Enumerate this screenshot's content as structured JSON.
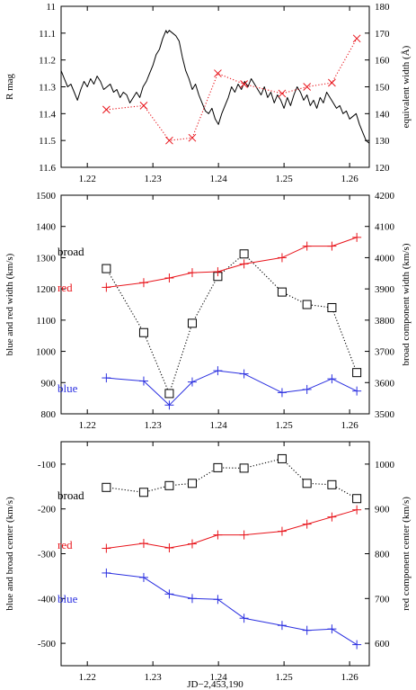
{
  "chart_data": [
    {
      "type": "line",
      "xlim": [
        1.216,
        1.263
      ],
      "xticks": [
        1.22,
        1.23,
        1.24,
        1.25,
        1.26
      ],
      "xtick_labels": [
        "1.22",
        "1.23",
        "1.24",
        "1.25",
        "1.26"
      ],
      "ylabel": "R mag",
      "ylim": [
        11.0,
        11.6
      ],
      "y_inverted": true,
      "yticks": [
        11.0,
        11.1,
        11.2,
        11.3,
        11.4,
        11.5,
        11.6
      ],
      "ytick_labels": [
        "11",
        "11.1",
        "11.2",
        "11.3",
        "11.4",
        "11.5",
        "11.6"
      ],
      "y2label": "equivalent width (Å)",
      "y2lim": [
        120,
        180
      ],
      "y2ticks": [
        120,
        130,
        140,
        150,
        160,
        170,
        180
      ],
      "y2tick_labels": [
        "120",
        "130",
        "140",
        "150",
        "160",
        "170",
        "180"
      ],
      "series": [
        {
          "axis": "left",
          "style": "solid",
          "color": "#000000",
          "x": [
            1.216,
            1.2165,
            1.217,
            1.2175,
            1.218,
            1.2185,
            1.219,
            1.2195,
            1.22,
            1.2205,
            1.221,
            1.2215,
            1.222,
            1.2225,
            1.223,
            1.2235,
            1.224,
            1.2245,
            1.225,
            1.2255,
            1.226,
            1.2265,
            1.227,
            1.2275,
            1.228,
            1.2285,
            1.229,
            1.2295,
            1.23,
            1.2305,
            1.231,
            1.2315,
            1.232,
            1.2322,
            1.2325,
            1.233,
            1.2335,
            1.234,
            1.2345,
            1.235,
            1.2355,
            1.236,
            1.2365,
            1.237,
            1.2375,
            1.238,
            1.2385,
            1.239,
            1.2395,
            1.24,
            1.2405,
            1.241,
            1.2415,
            1.242,
            1.2425,
            1.243,
            1.2435,
            1.244,
            1.2445,
            1.245,
            1.2455,
            1.246,
            1.2465,
            1.247,
            1.2475,
            1.248,
            1.2485,
            1.249,
            1.2495,
            1.25,
            1.2505,
            1.251,
            1.2515,
            1.252,
            1.2525,
            1.253,
            1.2535,
            1.254,
            1.2545,
            1.255,
            1.2555,
            1.256,
            1.2565,
            1.257,
            1.2575,
            1.258,
            1.2585,
            1.259,
            1.2595,
            1.26,
            1.2605,
            1.261,
            1.2615,
            1.262,
            1.2625,
            1.263
          ],
          "y": [
            11.24,
            11.27,
            11.3,
            11.29,
            11.32,
            11.35,
            11.31,
            11.28,
            11.3,
            11.27,
            11.29,
            11.26,
            11.28,
            11.31,
            11.3,
            11.29,
            11.32,
            11.31,
            11.34,
            11.32,
            11.33,
            11.36,
            11.34,
            11.32,
            11.34,
            11.3,
            11.28,
            11.25,
            11.22,
            11.18,
            11.16,
            11.12,
            11.09,
            11.1,
            11.09,
            11.1,
            11.11,
            11.13,
            11.19,
            11.24,
            11.27,
            11.31,
            11.29,
            11.33,
            11.36,
            11.39,
            11.4,
            11.38,
            11.42,
            11.44,
            11.4,
            11.37,
            11.34,
            11.3,
            11.32,
            11.29,
            11.31,
            11.28,
            11.3,
            11.27,
            11.29,
            11.31,
            11.33,
            11.3,
            11.34,
            11.32,
            11.36,
            11.33,
            11.35,
            11.38,
            11.34,
            11.37,
            11.33,
            11.3,
            11.32,
            11.35,
            11.33,
            11.37,
            11.35,
            11.38,
            11.34,
            11.36,
            11.32,
            11.34,
            11.36,
            11.38,
            11.37,
            11.4,
            11.39,
            11.42,
            11.41,
            11.4,
            11.44,
            11.47,
            11.5,
            11.51
          ]
        },
        {
          "axis": "right",
          "style": "dotted",
          "marker": "x",
          "color": "#e8141b",
          "x": [
            1.2229,
            1.2286,
            1.2325,
            1.236,
            1.2399,
            1.2439,
            1.2497,
            1.2535,
            1.2573,
            1.2611
          ],
          "y": [
            141.5,
            143,
            130,
            131,
            155,
            151,
            147.5,
            150,
            151.5,
            168
          ]
        }
      ]
    },
    {
      "type": "line",
      "xlim": [
        1.216,
        1.263
      ],
      "xticks": [
        1.22,
        1.23,
        1.24,
        1.25,
        1.26
      ],
      "xtick_labels": [
        "1.22",
        "1.23",
        "1.24",
        "1.25",
        "1.26"
      ],
      "ylabel": "blue and red width (km/s)",
      "ylim": [
        800,
        1500
      ],
      "yticks": [
        800,
        900,
        1000,
        1100,
        1200,
        1300,
        1400,
        1500
      ],
      "ytick_labels": [
        "800",
        "900",
        "1000",
        "1100",
        "1200",
        "1300",
        "1400",
        "1500"
      ],
      "y2label": "broad component width (km/s)",
      "y2lim": [
        3500,
        4200
      ],
      "y2ticks": [
        3500,
        3600,
        3700,
        3800,
        3900,
        4000,
        4100,
        4200
      ],
      "y2tick_labels": [
        "3500",
        "3600",
        "3700",
        "3800",
        "3900",
        "4000",
        "4100",
        "4200"
      ],
      "series": [
        {
          "name": "broad",
          "axis": "right",
          "style": "dotted",
          "marker": "square",
          "color": "#000000",
          "x": [
            1.2229,
            1.2286,
            1.2325,
            1.236,
            1.2399,
            1.2439,
            1.2497,
            1.2535,
            1.2573,
            1.2611
          ],
          "y": [
            3965,
            3760,
            3565,
            3790,
            3940,
            4012,
            3890,
            3850,
            3840,
            3632
          ]
        },
        {
          "name": "red",
          "axis": "left",
          "style": "solid",
          "marker": "plus",
          "color": "#e8141b",
          "x": [
            1.2229,
            1.2286,
            1.2325,
            1.236,
            1.2399,
            1.2439,
            1.2497,
            1.2535,
            1.2573,
            1.2611
          ],
          "y": [
            1205,
            1220,
            1235,
            1252,
            1255,
            1280,
            1300,
            1337,
            1337,
            1365
          ]
        },
        {
          "name": "blue",
          "axis": "left",
          "style": "solid",
          "marker": "plus",
          "color": "#2a2fe0",
          "x": [
            1.2229,
            1.2286,
            1.2325,
            1.236,
            1.2399,
            1.2439,
            1.2497,
            1.2535,
            1.2573,
            1.2611
          ],
          "y": [
            915,
            905,
            828,
            902,
            938,
            928,
            868,
            878,
            912,
            873
          ]
        }
      ],
      "labels": {
        "broad": "broad",
        "red": "red",
        "blue": "blue"
      }
    },
    {
      "type": "line",
      "xlim": [
        1.216,
        1.263
      ],
      "xticks": [
        1.22,
        1.23,
        1.24,
        1.25,
        1.26
      ],
      "xtick_labels": [
        "1.22",
        "1.23",
        "1.24",
        "1.25",
        "1.26"
      ],
      "xlabel": "JD−2,453,190",
      "ylabel": "blue and broad center (km/s)",
      "ylim": [
        -550,
        -50
      ],
      "yticks": [
        -500,
        -400,
        -300,
        -200,
        -100
      ],
      "ytick_labels": [
        "-500",
        "-400",
        "-300",
        "-200",
        "-100"
      ],
      "y2label": "red component center (km/s)",
      "y2lim": [
        550,
        1050
      ],
      "y2ticks": [
        600,
        700,
        800,
        900,
        1000
      ],
      "y2tick_labels": [
        "600",
        "700",
        "800",
        "900",
        "1000"
      ],
      "series": [
        {
          "name": "broad",
          "axis": "left",
          "style": "dotted",
          "marker": "square",
          "color": "#000000",
          "x": [
            1.2229,
            1.2286,
            1.2325,
            1.236,
            1.2399,
            1.2439,
            1.2497,
            1.2535,
            1.2573,
            1.2611
          ],
          "y": [
            -152,
            -163,
            -148,
            -143,
            -108,
            -109,
            -88,
            -143,
            -146,
            -177
          ]
        },
        {
          "name": "red",
          "axis": "right",
          "style": "solid",
          "marker": "plus",
          "color": "#e8141b",
          "x": [
            1.2229,
            1.2286,
            1.2325,
            1.236,
            1.2399,
            1.2439,
            1.2497,
            1.2535,
            1.2573,
            1.2611
          ],
          "y": [
            812,
            823,
            813,
            822,
            842,
            842,
            850,
            866,
            882,
            898
          ]
        },
        {
          "name": "blue",
          "axis": "left",
          "style": "solid",
          "marker": "plus",
          "color": "#2a2fe0",
          "x": [
            1.2229,
            1.2286,
            1.2325,
            1.236,
            1.2399,
            1.2439,
            1.2497,
            1.2535,
            1.2573,
            1.2611
          ],
          "y": [
            -343,
            -353,
            -390,
            -400,
            -402,
            -444,
            -460,
            -471,
            -468,
            -503
          ]
        }
      ],
      "labels": {
        "broad": "broad",
        "red": "red",
        "blue": "blue"
      }
    }
  ]
}
